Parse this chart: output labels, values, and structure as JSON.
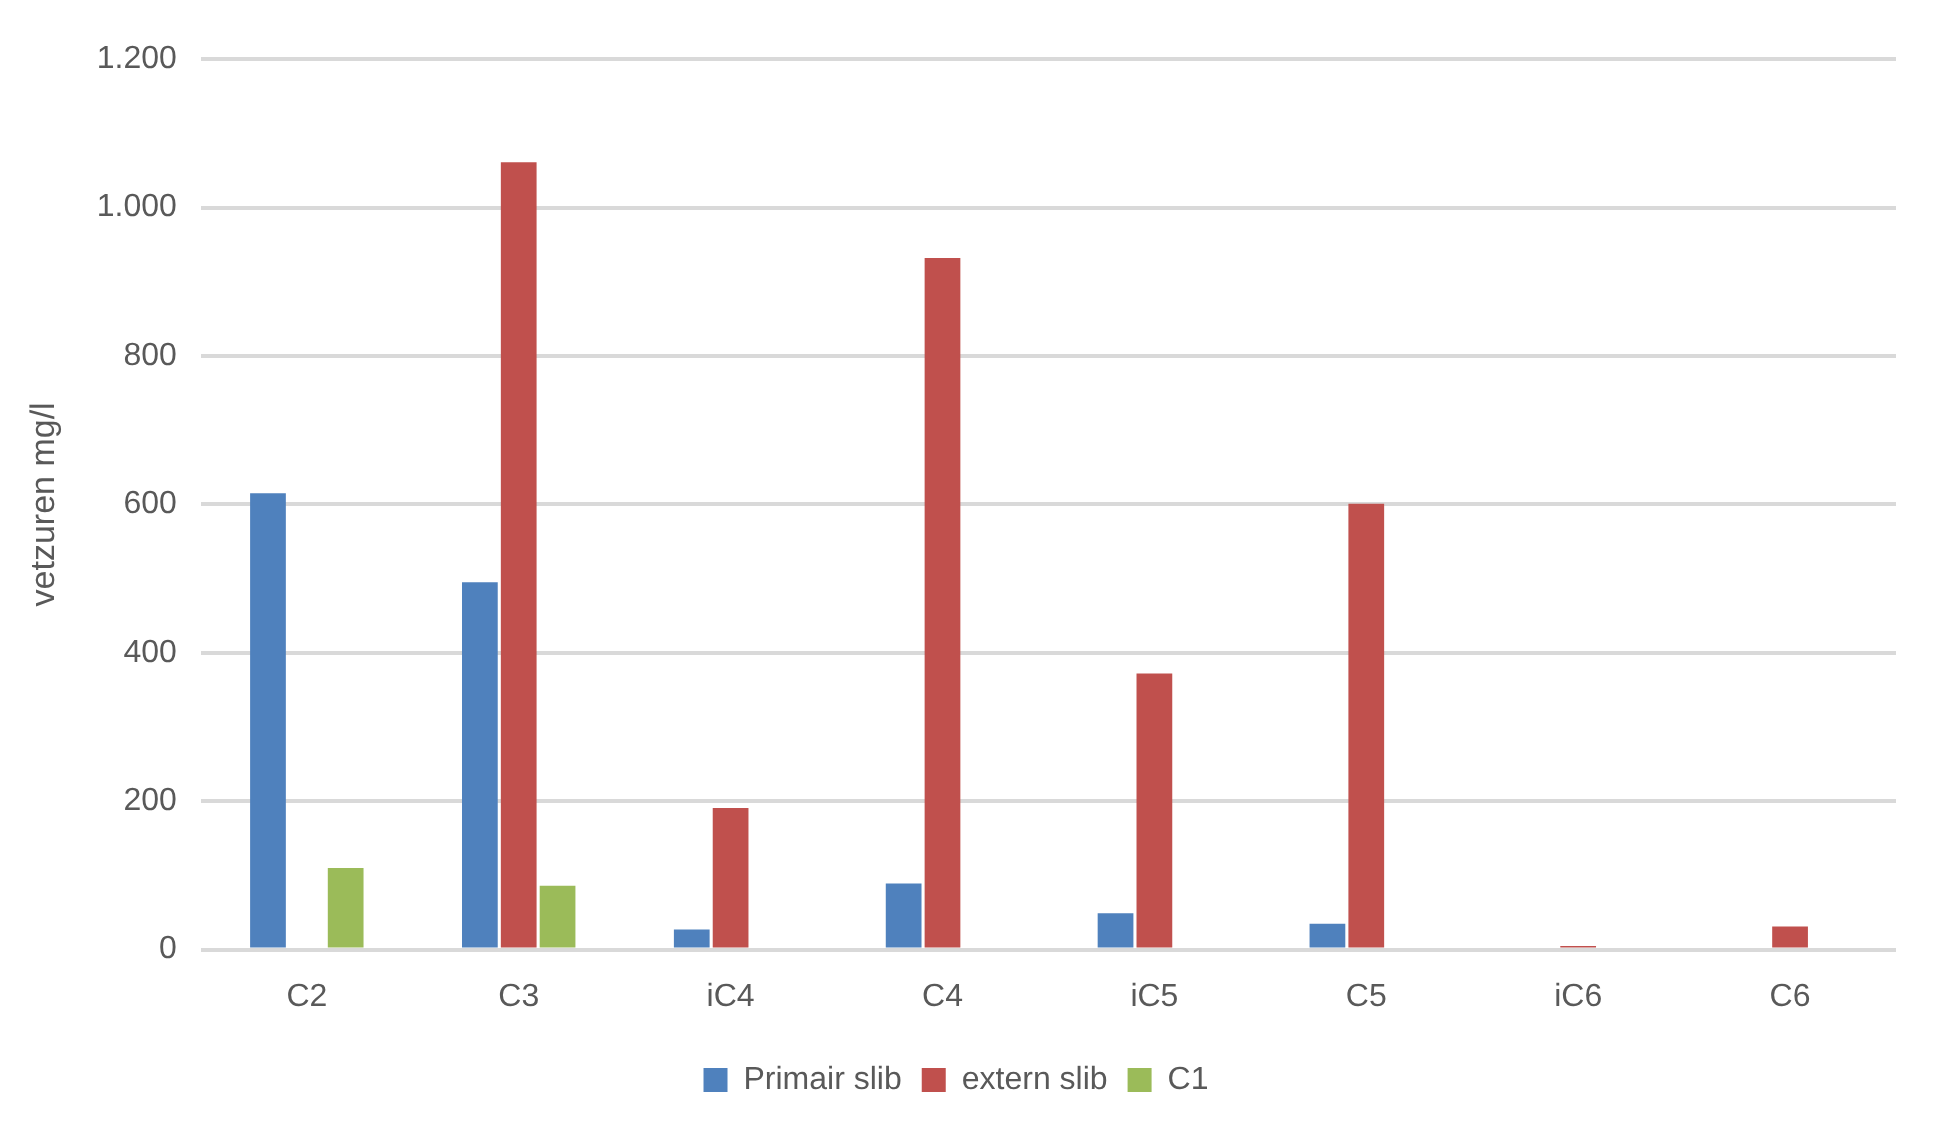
{
  "chart_data": {
    "type": "bar",
    "ylabel": "vetzuren mg/l",
    "categories": [
      "C2",
      "C3",
      "iC4",
      "C4",
      "iC5",
      "C5",
      "iC6",
      "C6"
    ],
    "series": [
      {
        "name": "Primair slib",
        "color": "#4f81bd",
        "values": [
          615,
          495,
          27,
          89,
          49,
          35,
          null,
          null
        ]
      },
      {
        "name": "extern slib",
        "color": "#c0504d",
        "values": [
          null,
          1061,
          191,
          932,
          372,
          601,
          5,
          31
        ]
      },
      {
        "name": "C1",
        "color": "#9bbb59",
        "values": [
          110,
          86,
          null,
          null,
          null,
          null,
          null,
          null
        ]
      }
    ],
    "ylim": [
      0,
      1200
    ],
    "yticks": [
      0,
      200,
      400,
      600,
      800,
      {
        "value": 1000,
        "label": "1.000"
      },
      {
        "value": 1200,
        "label": "1.200"
      }
    ],
    "grid": "y",
    "legend": "bottom"
  }
}
